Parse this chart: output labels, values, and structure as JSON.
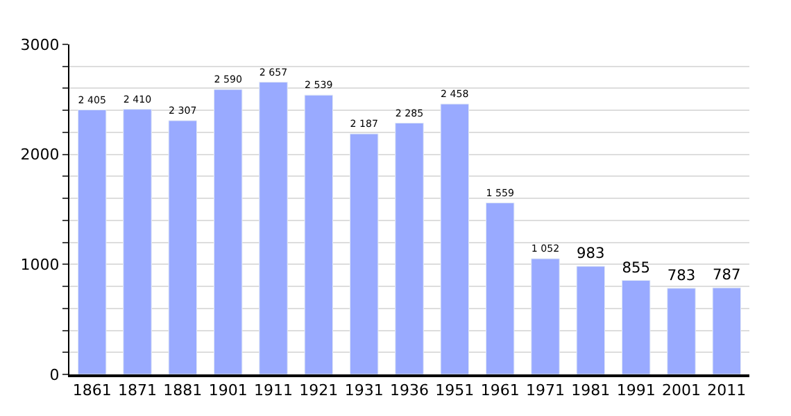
{
  "chart_data": {
    "type": "bar",
    "categories": [
      "1861",
      "1871",
      "1881",
      "1901",
      "1911",
      "1921",
      "1931",
      "1936",
      "1951",
      "1961",
      "1971",
      "1981",
      "1991",
      "2001",
      "2011"
    ],
    "values": [
      2405,
      2410,
      2307,
      2590,
      2657,
      2539,
      2187,
      2285,
      2458,
      1559,
      1052,
      983,
      855,
      783,
      787
    ],
    "value_labels": [
      "2 405",
      "2 410",
      "2 307",
      "2 590",
      "2 657",
      "2 539",
      "2 187",
      "2 285",
      "2 458",
      "1 559",
      "1 052",
      "983",
      "855",
      "783",
      "787"
    ],
    "color": "#99aaff",
    "ylim": [
      0,
      3000
    ],
    "yticks": [
      0,
      {
        "value": 200,
        "label": null
      },
      {
        "value": 400,
        "label": null
      },
      {
        "value": 600,
        "label": null
      },
      {
        "value": 800,
        "label": null
      },
      1000,
      {
        "value": 1200,
        "label": null
      },
      {
        "value": 1400,
        "label": null
      },
      {
        "value": 1600,
        "label": null
      },
      {
        "value": 1800,
        "label": null
      },
      2000,
      {
        "value": 2200,
        "label": null
      },
      {
        "value": 2400,
        "label": null
      },
      {
        "value": 2600,
        "label": null
      },
      {
        "value": 2800,
        "label": null
      },
      3000
    ],
    "grid": "y"
  }
}
